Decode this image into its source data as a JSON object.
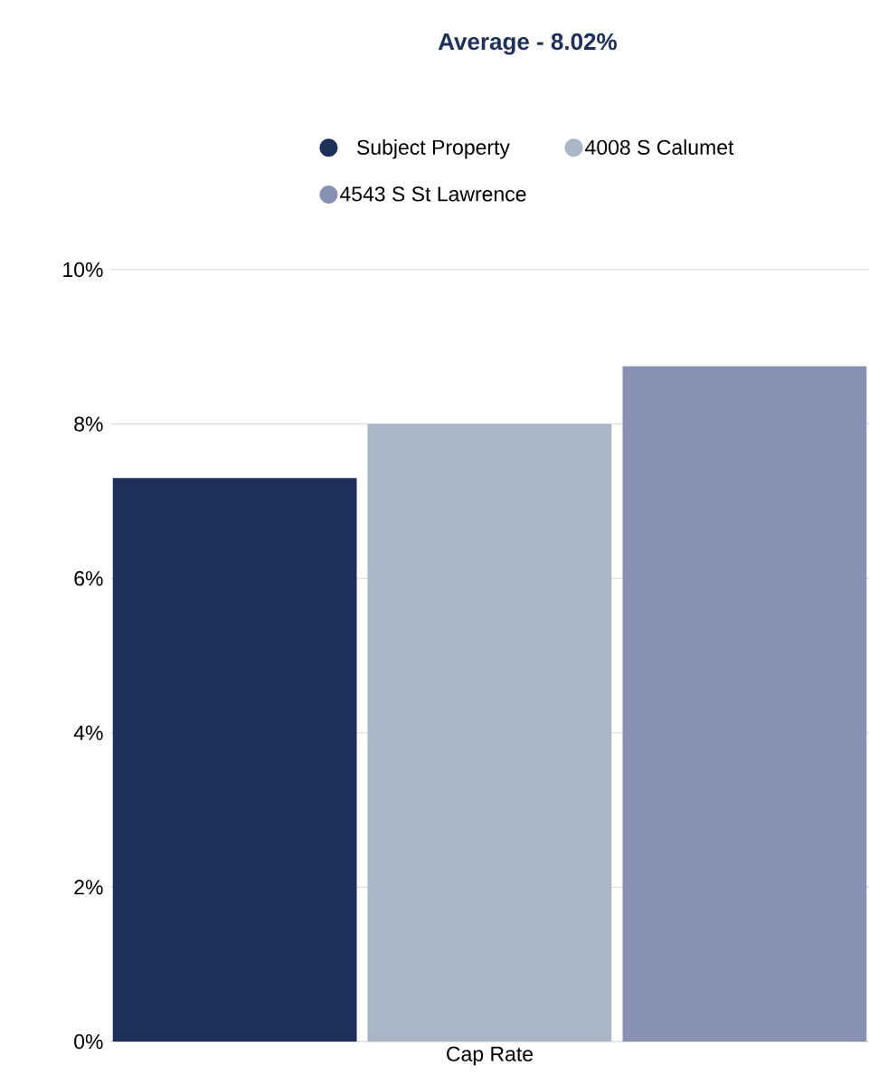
{
  "chart_data": {
    "type": "bar",
    "title": "Average - 8.02%",
    "categories": [
      "Cap Rate"
    ],
    "series": [
      {
        "name": "Subject Property",
        "color": "#1e2f5a",
        "values": [
          7.3
        ]
      },
      {
        "name": "4008 S Calumet",
        "color": "#aab6c6",
        "values": [
          8.0
        ]
      },
      {
        "name": "4543 S St Lawrence",
        "color": "#8890b3",
        "values": [
          8.75
        ]
      }
    ],
    "ylim": [
      0,
      10
    ],
    "yticks": [
      {
        "value": 0,
        "label": "0%"
      },
      {
        "value": 2,
        "label": "2%"
      },
      {
        "value": 4,
        "label": "4%"
      },
      {
        "value": 6,
        "label": "6%"
      },
      {
        "value": 8,
        "label": "8%"
      },
      {
        "value": 10,
        "label": "10%"
      }
    ],
    "grid": "y",
    "legend": "top"
  }
}
